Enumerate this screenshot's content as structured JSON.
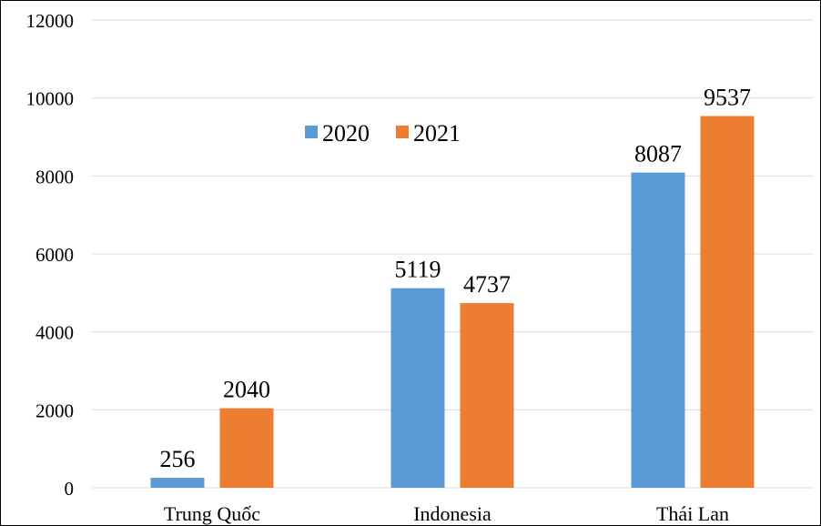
{
  "chart_data": {
    "type": "bar",
    "title": "",
    "xlabel": "",
    "ylabel": "",
    "categories": [
      "Trung Quốc",
      "Indonesia",
      "Thái Lan"
    ],
    "series": [
      {
        "name": "2020",
        "values": [
          256,
          5119,
          8087
        ],
        "color": "#5b9bd5"
      },
      {
        "name": "2021",
        "values": [
          2040,
          4737,
          9537
        ],
        "color": "#ed7d31"
      }
    ],
    "ylim": [
      0,
      12000
    ],
    "yticks": [
      0,
      2000,
      4000,
      6000,
      8000,
      10000,
      12000
    ],
    "grid": true,
    "legend_position": "top-center",
    "data_labels": true
  }
}
